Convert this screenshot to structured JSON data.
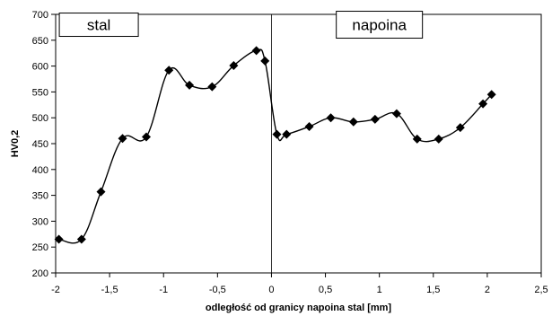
{
  "chart_data": {
    "type": "line",
    "xlabel": "odległość od granicy napoina stal [mm]",
    "ylabel": "HV0,2",
    "xlim": [
      -2,
      2.5
    ],
    "ylim": [
      200,
      700
    ],
    "x_ticks": [
      "-2",
      "-1,5",
      "-1",
      "-0,5",
      "0",
      "0,5",
      "1",
      "1,5",
      "2",
      "2,5"
    ],
    "x_tick_values": [
      -2,
      -1.5,
      -1,
      -0.5,
      0,
      0.5,
      1,
      1.5,
      2,
      2.5
    ],
    "y_ticks": [
      "200",
      "250",
      "300",
      "350",
      "400",
      "450",
      "500",
      "550",
      "600",
      "650",
      "700"
    ],
    "y_tick_values": [
      200,
      250,
      300,
      350,
      400,
      450,
      500,
      550,
      600,
      650,
      700
    ],
    "grid": false,
    "divider_x": 0,
    "annotations": [
      {
        "text": "stal",
        "x": -1.6,
        "y": 680
      },
      {
        "text": "napoina",
        "x": 1.0,
        "y": 680
      }
    ],
    "series": [
      {
        "x": [
          -1.97,
          -1.76,
          -1.58,
          -1.38,
          -1.16,
          -0.95,
          -0.76,
          -0.55,
          -0.35,
          -0.14,
          -0.06,
          0.05,
          0.14,
          0.35,
          0.55,
          0.76,
          0.96,
          1.16,
          1.35,
          1.55,
          1.75,
          1.96,
          2.04
        ],
        "y": [
          265,
          265,
          357,
          460,
          463,
          592,
          563,
          560,
          601,
          630,
          610,
          468,
          468,
          483,
          500,
          492,
          497,
          508,
          459,
          459,
          481,
          527,
          545
        ],
        "color": "#000000"
      }
    ]
  }
}
